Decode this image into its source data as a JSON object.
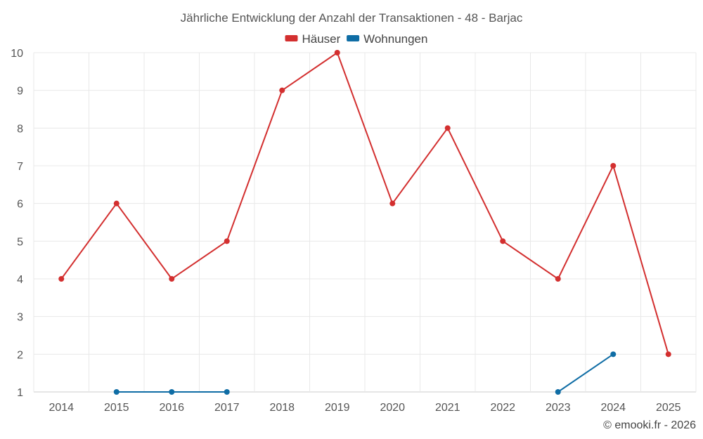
{
  "chart_data": {
    "type": "line",
    "title": "Jährliche Entwicklung der Anzahl der Transaktionen - 48 - Barjac",
    "xlabel": "",
    "ylabel": "",
    "categories": [
      "2014",
      "2015",
      "2016",
      "2017",
      "2018",
      "2019",
      "2020",
      "2021",
      "2022",
      "2023",
      "2024",
      "2025"
    ],
    "ylim": [
      1,
      10
    ],
    "yticks": [
      1,
      2,
      3,
      4,
      5,
      6,
      7,
      8,
      9,
      10
    ],
    "grid": true,
    "legend_position": "top-center",
    "series": [
      {
        "name": "Häuser",
        "color": "#d32f2f",
        "values": [
          4,
          6,
          4,
          5,
          9,
          10,
          6,
          8,
          5,
          4,
          7,
          2
        ]
      },
      {
        "name": "Wohnungen",
        "color": "#0f6da5",
        "values": [
          null,
          1,
          1,
          1,
          null,
          null,
          null,
          null,
          null,
          1,
          2,
          null
        ]
      }
    ],
    "credit": "© emooki.fr - 2026"
  }
}
